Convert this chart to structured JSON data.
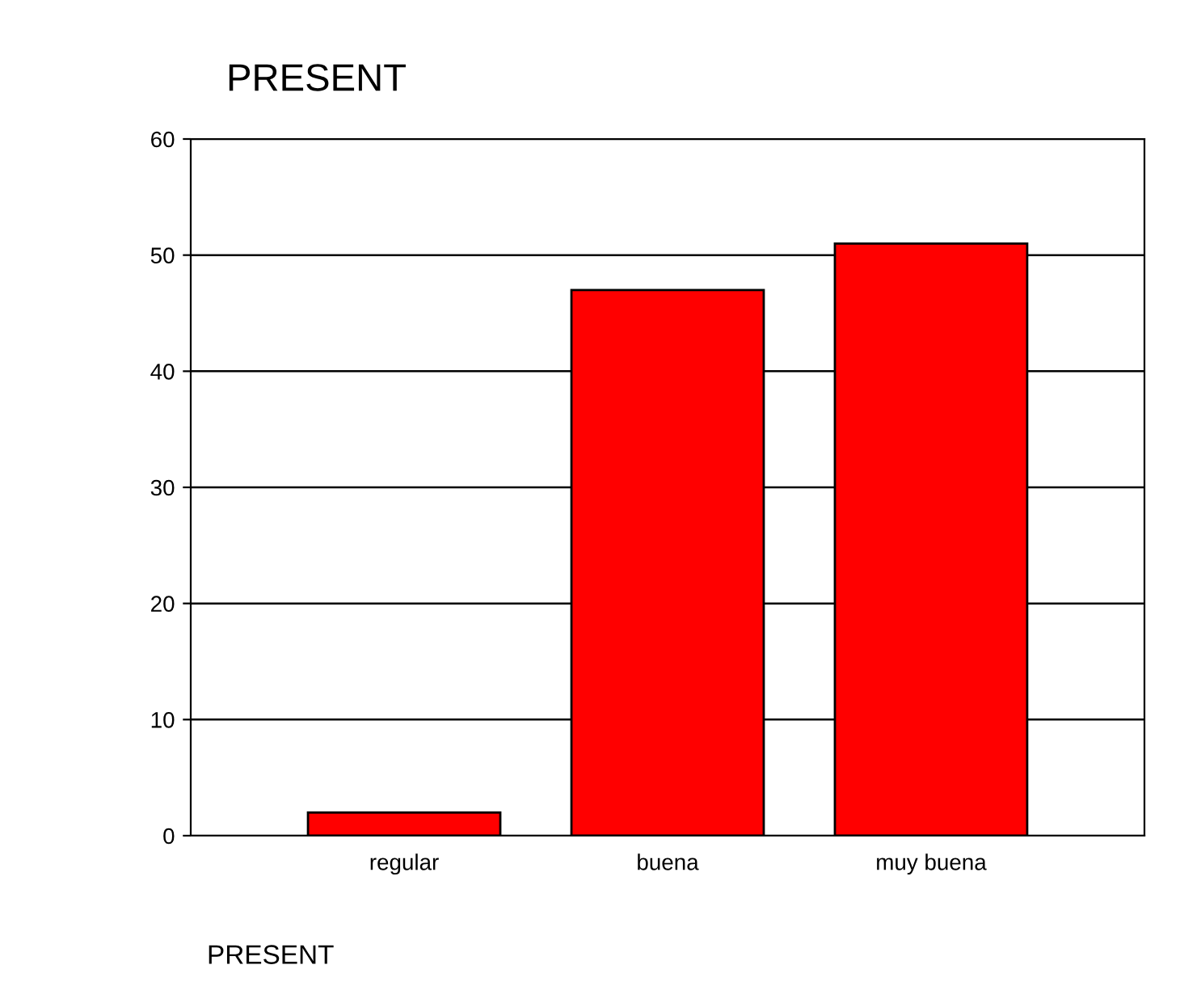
{
  "chart_data": {
    "type": "bar",
    "title": "PRESENT",
    "xlabel": "PRESENT",
    "categories": [
      "regular",
      "buena",
      "muy buena"
    ],
    "values": [
      2,
      47,
      51
    ],
    "color": "#ff0000",
    "ylim": [
      0,
      60
    ],
    "yticks": [
      0,
      10,
      20,
      30,
      40,
      50,
      60
    ],
    "grid": "y",
    "legend": false
  }
}
